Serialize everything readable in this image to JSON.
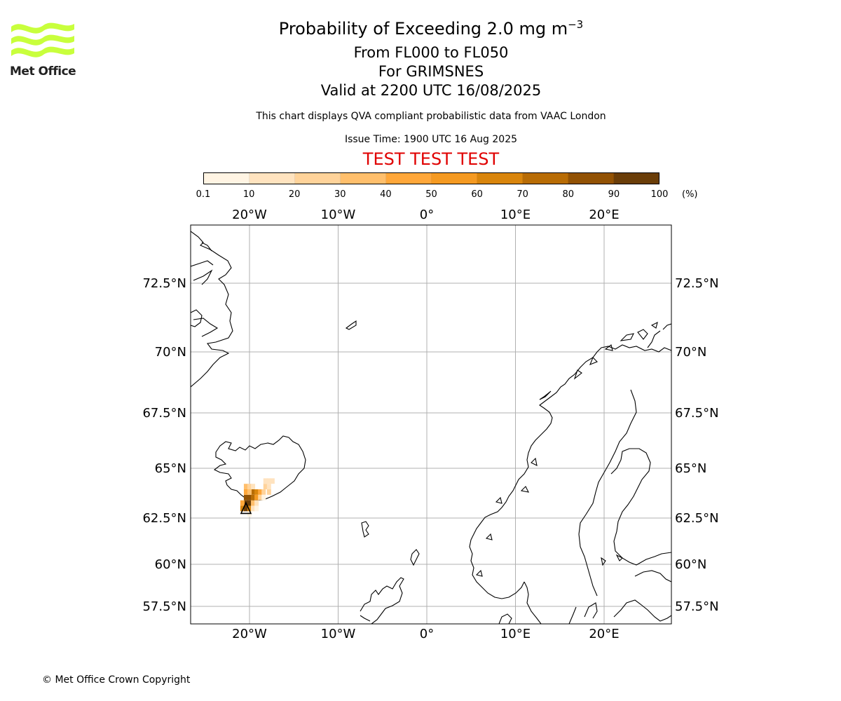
{
  "logo": {
    "name": "Met Office"
  },
  "header": {
    "title_main": "Probability of Exceeding 2.0 mg m",
    "title_sup": "−3",
    "flight_levels": "From FL000 to FL050",
    "volcano": "For GRIMSNES",
    "valid": "Valid at 2200 UTC 16/08/2025",
    "description": "This chart displays QVA compliant probabilistic data from VAAC London",
    "issue_time": "Issue Time: 1900 UTC 16 Aug 2025",
    "test_banner": "TEST TEST TEST"
  },
  "colorbar": {
    "labels": [
      "0.1",
      "10",
      "20",
      "30",
      "40",
      "50",
      "60",
      "70",
      "80",
      "90",
      "100"
    ],
    "unit": "(%)",
    "colors": [
      "#fff4e3",
      "#ffe3bf",
      "#ffd39a",
      "#ffbf6c",
      "#ffa73a",
      "#f59a22",
      "#d9850c",
      "#b86c05",
      "#925204",
      "#6a3d08"
    ]
  },
  "map": {
    "lon_labels": [
      "20°W",
      "10°W",
      "0°",
      "10°E",
      "20°E"
    ],
    "lat_labels": [
      "72.5°N",
      "70°N",
      "67.5°N",
      "65°N",
      "62.5°N",
      "60°N",
      "57.5°N"
    ],
    "coast_color": "#000000",
    "grid_color": "#b0b0b0"
  },
  "chart_data": {
    "type": "heatmap",
    "title": "Probability of Exceeding 2.0 mg m−3",
    "x_label": "",
    "y_label": "",
    "lon_ticks": [
      -20,
      -10,
      0,
      10,
      20
    ],
    "lat_ticks": [
      72.5,
      70,
      67.5,
      65,
      62.5,
      60,
      57.5
    ],
    "scale_levels_percent": [
      0.1,
      10,
      20,
      30,
      40,
      50,
      60,
      70,
      80,
      90,
      100
    ],
    "cells": [
      {
        "lon": -20.4,
        "lat": 64.5,
        "prob": 95
      },
      {
        "lon": -20.0,
        "lat": 64.5,
        "prob": 90
      },
      {
        "lon": -20.4,
        "lat": 64.7,
        "prob": 85
      },
      {
        "lon": -20.0,
        "lat": 64.7,
        "prob": 80
      },
      {
        "lon": -19.6,
        "lat": 64.7,
        "prob": 75
      },
      {
        "lon": -19.2,
        "lat": 64.7,
        "prob": 55
      },
      {
        "lon": -19.6,
        "lat": 64.5,
        "prob": 35
      },
      {
        "lon": -19.2,
        "lat": 64.5,
        "prob": 15
      },
      {
        "lon": -19.6,
        "lat": 64.9,
        "prob": 70
      },
      {
        "lon": -19.2,
        "lat": 64.9,
        "prob": 65
      },
      {
        "lon": -18.8,
        "lat": 64.9,
        "prob": 45
      },
      {
        "lon": -18.4,
        "lat": 64.9,
        "prob": 25
      },
      {
        "lon": -18.8,
        "lat": 64.7,
        "prob": 20
      },
      {
        "lon": -18.4,
        "lat": 64.7,
        "prob": 8
      },
      {
        "lon": -20.4,
        "lat": 64.9,
        "prob": 45
      },
      {
        "lon": -20.0,
        "lat": 64.9,
        "prob": 35
      },
      {
        "lon": -20.4,
        "lat": 65.1,
        "prob": 30
      },
      {
        "lon": -20.0,
        "lat": 65.1,
        "prob": 20
      },
      {
        "lon": -19.6,
        "lat": 65.1,
        "prob": 15
      },
      {
        "lon": -18.2,
        "lat": 65.1,
        "prob": 20
      },
      {
        "lon": -17.8,
        "lat": 65.1,
        "prob": 15
      },
      {
        "lon": -18.2,
        "lat": 65.3,
        "prob": 10
      },
      {
        "lon": -17.8,
        "lat": 65.3,
        "prob": 12
      },
      {
        "lon": -17.4,
        "lat": 65.3,
        "prob": 10
      },
      {
        "lon": -17.8,
        "lat": 64.9,
        "prob": 25
      },
      {
        "lon": -20.8,
        "lat": 64.5,
        "prob": 40
      },
      {
        "lon": -20.8,
        "lat": 64.3,
        "prob": 60
      },
      {
        "lon": -20.4,
        "lat": 64.3,
        "prob": 95
      },
      {
        "lon": -20.0,
        "lat": 64.3,
        "prob": 60
      },
      {
        "lon": -19.6,
        "lat": 64.3,
        "prob": 10
      },
      {
        "lon": -19.2,
        "lat": 64.3,
        "prob": 5
      },
      {
        "lon": -20.0,
        "lat": 64.1,
        "prob": 3
      }
    ],
    "volcano_marker": {
      "name": "GRIMSNES",
      "symbol": "triangle",
      "lon": -20.4,
      "lat": 64.3
    }
  },
  "footer": {
    "copyright": "© Met Office Crown Copyright"
  }
}
